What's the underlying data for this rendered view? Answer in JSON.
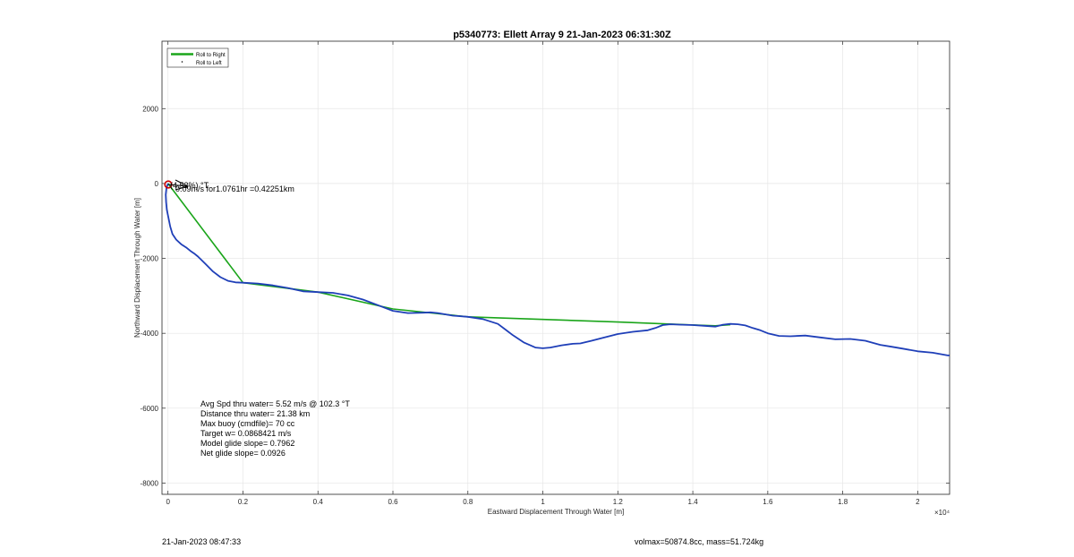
{
  "figure": {
    "footer_left": "21-Jan-2023 08:47:33",
    "footer_right": "volmax=50874.8cc, mass=51.724kg",
    "stats_lines": [
      "Avg Spd thru water=  5.52 m/s @ 102.3 °T",
      "Distance thru water= 21.38 km",
      "Max buoy (cmdfile)= 70 cc",
      "Target w= 0.0868421 m/s",
      "Model glide slope= 0.7962",
      "Net glide slope= 0.0926"
    ],
    "annotation_text": "0.09m/s for1.0761hr =0.42251km",
    "annotation_overlap_text": "(4.52%) °T"
  },
  "chart_data": {
    "type": "line",
    "title": "p5340773: Ellett Array 9 21-Jan-2023 06:31:30Z",
    "xlabel": "Eastward Displacement Through Water [m]",
    "ylabel": "Northward Displacement Through Water [m]",
    "x_exponent_label": "×10⁴",
    "xlim": [
      -0.016,
      2.085
    ],
    "ylim": [
      -8300,
      3800
    ],
    "x_scale_note": "x values in units of 10^4 m",
    "x_ticks": [
      0,
      0.2,
      0.4,
      0.6,
      0.8,
      1,
      1.2,
      1.4,
      1.6,
      1.8,
      2
    ],
    "x_tick_labels": [
      "0",
      "0.2",
      "0.4",
      "0.6",
      "0.8",
      "1",
      "1.2",
      "1.4",
      "1.6",
      "1.8",
      "2"
    ],
    "y_ticks": [
      -8000,
      -6000,
      -4000,
      -2000,
      0,
      2000
    ],
    "y_tick_labels": [
      "-8000",
      "-6000",
      "-4000",
      "-2000",
      "0",
      "2000"
    ],
    "grid": true,
    "legend_position": "top-left",
    "legend": [
      "Roll to Right",
      "Roll to Left"
    ],
    "colors": {
      "roll_right": "#1aa51a",
      "roll_left": "#000000",
      "track": "#1f3fb8",
      "start_marker": "#cc0000"
    },
    "series": [
      {
        "name": "Roll to Right",
        "x": [
          0,
          0.2,
          0.4,
          0.6,
          0.8,
          1.2,
          1.46,
          1.5
        ],
        "y": [
          0,
          -2650,
          -2900,
          -3350,
          -3560,
          -3700,
          -3800,
          -3770
        ]
      },
      {
        "name": "Track",
        "x": [
          0,
          -0.004,
          -0.006,
          -0.005,
          -0.003,
          0.002,
          0.006,
          0.012,
          0.022,
          0.035,
          0.05,
          0.06,
          0.07,
          0.08,
          0.09,
          0.1,
          0.12,
          0.14,
          0.16,
          0.18,
          0.2,
          0.24,
          0.28,
          0.32,
          0.36,
          0.4,
          0.44,
          0.48,
          0.52,
          0.56,
          0.6,
          0.64,
          0.68,
          0.7,
          0.72,
          0.76,
          0.8,
          0.84,
          0.88,
          0.9,
          0.92,
          0.95,
          0.98,
          1.0,
          1.02,
          1.05,
          1.08,
          1.1,
          1.13,
          1.16,
          1.2,
          1.24,
          1.28,
          1.3,
          1.32,
          1.34,
          1.37,
          1.4,
          1.43,
          1.46,
          1.48,
          1.5,
          1.52,
          1.54,
          1.56,
          1.58,
          1.6,
          1.63,
          1.66,
          1.7,
          1.74,
          1.78,
          1.82,
          1.86,
          1.9,
          1.93,
          1.96,
          2.0,
          2.04,
          2.08,
          2.085
        ],
        "y": [
          0,
          -120,
          -300,
          -500,
          -700,
          -950,
          -1150,
          -1350,
          -1500,
          -1620,
          -1720,
          -1800,
          -1870,
          -1950,
          -2050,
          -2150,
          -2350,
          -2500,
          -2600,
          -2640,
          -2650,
          -2670,
          -2720,
          -2790,
          -2880,
          -2900,
          -2920,
          -2990,
          -3100,
          -3250,
          -3400,
          -3460,
          -3450,
          -3440,
          -3460,
          -3530,
          -3560,
          -3620,
          -3750,
          -3900,
          -4050,
          -4250,
          -4380,
          -4400,
          -4380,
          -4320,
          -4280,
          -4270,
          -4200,
          -4120,
          -4020,
          -3960,
          -3920,
          -3860,
          -3780,
          -3760,
          -3770,
          -3780,
          -3800,
          -3820,
          -3770,
          -3750,
          -3760,
          -3790,
          -3860,
          -3920,
          -4000,
          -4070,
          -4080,
          -4060,
          -4110,
          -4160,
          -4150,
          -4200,
          -4310,
          -4360,
          -4410,
          -4480,
          -4520,
          -4590,
          -4590
        ]
      }
    ]
  }
}
